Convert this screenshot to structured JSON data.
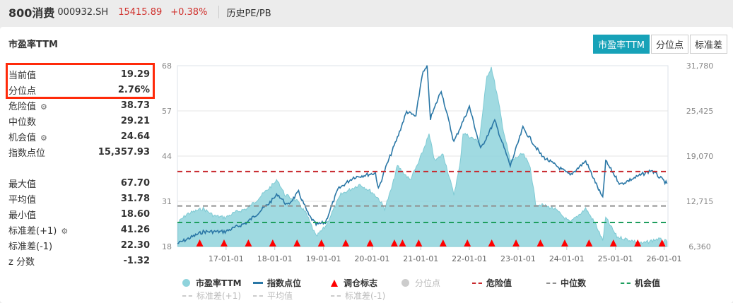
{
  "header": {
    "name": "800消费",
    "code": "000932.SH",
    "price": "15415.89",
    "change": "+0.38%",
    "link": "历史PE/PB"
  },
  "panel": {
    "title": "市盈率TTM",
    "tabs": [
      {
        "label": "市盈率TTM",
        "active": true
      },
      {
        "label": "分位点"
      },
      {
        "label": "标准差"
      }
    ]
  },
  "stats_top": [
    {
      "label": "当前值",
      "value": "19.29"
    },
    {
      "label": "分位点",
      "value": "2.76%"
    },
    {
      "label": "危险值",
      "value": "38.73",
      "gear": true
    },
    {
      "label": "中位数",
      "value": "29.21"
    },
    {
      "label": "机会值",
      "value": "24.64",
      "gear": true
    },
    {
      "label": "指数点位",
      "value": "15,357.93"
    }
  ],
  "stats_bottom": [
    {
      "label": "最大值",
      "value": "67.70"
    },
    {
      "label": "平均值",
      "value": "31.78"
    },
    {
      "label": "最小值",
      "value": "18.60"
    },
    {
      "label": "标准差(+1)",
      "value": "41.26",
      "gear": true
    },
    {
      "label": "标准差(-1)",
      "value": "22.30"
    },
    {
      "label": "z 分数",
      "value": "-1.32"
    }
  ],
  "colors": {
    "pe": "#8fd3dc",
    "index": "#2a77a6",
    "danger": "#c8282d",
    "median": "#909090",
    "opportunity": "#1e9e5e",
    "marker": "#ff0000",
    "accent": "#17a2b8",
    "highlight": "#ff2a0a"
  },
  "chart_data": {
    "type": "area+line",
    "left_axis": {
      "ticks": [
        "68",
        "57",
        "44",
        "31",
        "18"
      ],
      "range": [
        18,
        68
      ]
    },
    "right_axis": {
      "ticks": [
        "31,780",
        "25,425",
        "19,070",
        "12,715",
        "6,360"
      ],
      "range": [
        6360,
        31780
      ]
    },
    "x_ticks": [
      "17-01-01",
      "18-01-01",
      "19-01-01",
      "20-01-01",
      "21-01-01",
      "22-01-01",
      "23-01-01",
      "24-01-01",
      "25-01-01",
      "26-01-01"
    ],
    "x_range": [
      2016.0,
      2026.08
    ],
    "pe_series": {
      "name": "市盈率TTM",
      "points": [
        [
          2016.01,
          24.6
        ],
        [
          2016.2,
          27
        ],
        [
          2016.53,
          28.5
        ],
        [
          2016.75,
          26.5
        ],
        [
          2016.98,
          26
        ],
        [
          2017.2,
          27.5
        ],
        [
          2017.43,
          28.5
        ],
        [
          2017.6,
          30.5
        ],
        [
          2017.81,
          33.2
        ],
        [
          2018.06,
          36.4
        ],
        [
          2018.2,
          32.4
        ],
        [
          2018.46,
          30.5
        ],
        [
          2018.65,
          27
        ],
        [
          2018.85,
          20.7
        ],
        [
          2019.04,
          23.5
        ],
        [
          2019.2,
          28
        ],
        [
          2019.36,
          32.4
        ],
        [
          2019.75,
          35.2
        ],
        [
          2020.0,
          33
        ],
        [
          2020.13,
          31.3
        ],
        [
          2020.26,
          28.5
        ],
        [
          2020.4,
          34
        ],
        [
          2020.52,
          40.3
        ],
        [
          2020.78,
          36.4
        ],
        [
          2020.95,
          41
        ],
        [
          2021.17,
          48.9
        ],
        [
          2021.29,
          41.6
        ],
        [
          2021.46,
          43.6
        ],
        [
          2021.68,
          32.4
        ],
        [
          2021.8,
          40
        ],
        [
          2021.87,
          49.4
        ],
        [
          2022.2,
          46.9
        ],
        [
          2022.36,
          65
        ],
        [
          2022.45,
          67.6
        ],
        [
          2022.58,
          59.2
        ],
        [
          2022.7,
          50
        ],
        [
          2022.84,
          41.6
        ],
        [
          2023.1,
          43.6
        ],
        [
          2023.25,
          40
        ],
        [
          2023.36,
          29.9
        ],
        [
          2023.74,
          28.5
        ],
        [
          2024.07,
          24.6
        ],
        [
          2024.39,
          28.5
        ],
        [
          2024.6,
          24
        ],
        [
          2024.74,
          19.6
        ],
        [
          2024.8,
          26
        ],
        [
          2025.03,
          20.7
        ],
        [
          2025.35,
          19.6
        ],
        [
          2025.55,
          18.8
        ],
        [
          2025.87,
          20.1
        ],
        [
          2026.06,
          19.3
        ]
      ]
    },
    "index_series": {
      "name": "指数点位",
      "points": [
        [
          2016.0,
          6757
        ],
        [
          2016.53,
          8445
        ],
        [
          2016.98,
          8445
        ],
        [
          2017.43,
          9736
        ],
        [
          2017.88,
          12417
        ],
        [
          2018.06,
          13708
        ],
        [
          2018.26,
          12119
        ],
        [
          2018.49,
          14006
        ],
        [
          2018.7,
          10729
        ],
        [
          2018.85,
          9438
        ],
        [
          2019.04,
          9736
        ],
        [
          2019.3,
          14403
        ],
        [
          2019.62,
          16091
        ],
        [
          2020.07,
          16687
        ],
        [
          2020.13,
          14403
        ],
        [
          2020.26,
          17084
        ],
        [
          2020.52,
          21652
        ],
        [
          2020.71,
          25326
        ],
        [
          2020.9,
          24631
        ],
        [
          2021.03,
          30589
        ],
        [
          2021.13,
          31582
        ],
        [
          2021.2,
          24333
        ],
        [
          2021.42,
          28305
        ],
        [
          2021.68,
          21056
        ],
        [
          2022.0,
          26021
        ],
        [
          2022.23,
          20063
        ],
        [
          2022.52,
          24035
        ],
        [
          2022.84,
          17680
        ],
        [
          2023.1,
          23042
        ],
        [
          2023.49,
          19070
        ],
        [
          2024.07,
          16389
        ],
        [
          2024.39,
          18375
        ],
        [
          2024.74,
          13112
        ],
        [
          2024.8,
          18375
        ],
        [
          2025.1,
          15098
        ],
        [
          2025.74,
          17084
        ],
        [
          2026.06,
          15197
        ]
      ]
    },
    "reference_lines": {
      "danger": 38.73,
      "median": 29.21,
      "opportunity": 24.64
    },
    "rebalance_markers": [
      "2016-06",
      "2016-12",
      "2017-06",
      "2017-12",
      "2018-06",
      "2018-12",
      "2019-06",
      "2019-12",
      "2020-06",
      "2020-08",
      "2020-12",
      "2021-06",
      "2021-12",
      "2022-06",
      "2022-12",
      "2023-06",
      "2023-12",
      "2024-06",
      "2024-12",
      "2025-06",
      "2025-12"
    ],
    "legend": [
      {
        "label": "市盈率TTM",
        "shape": "circle",
        "color": "#8fd3dc"
      },
      {
        "label": "指数点位",
        "shape": "line",
        "color": "#2a77a6"
      },
      {
        "label": "调仓标志",
        "shape": "triangle",
        "color": "#ff0000"
      },
      {
        "label": "分位点",
        "shape": "circle",
        "color": "#cccccc",
        "disabled": true
      },
      {
        "label": "危险值",
        "shape": "dash",
        "color": "#c8282d"
      },
      {
        "label": "中位数",
        "shape": "dash",
        "color": "#909090"
      },
      {
        "label": "机会值",
        "shape": "dash",
        "color": "#1e9e5e"
      },
      {
        "label": "标准差(+1)",
        "shape": "dash",
        "color": "#cccccc",
        "disabled": true
      },
      {
        "label": "平均值",
        "shape": "dash",
        "color": "#cccccc",
        "disabled": true
      },
      {
        "label": "标准差(-1)",
        "shape": "dash",
        "color": "#cccccc",
        "disabled": true
      }
    ]
  }
}
